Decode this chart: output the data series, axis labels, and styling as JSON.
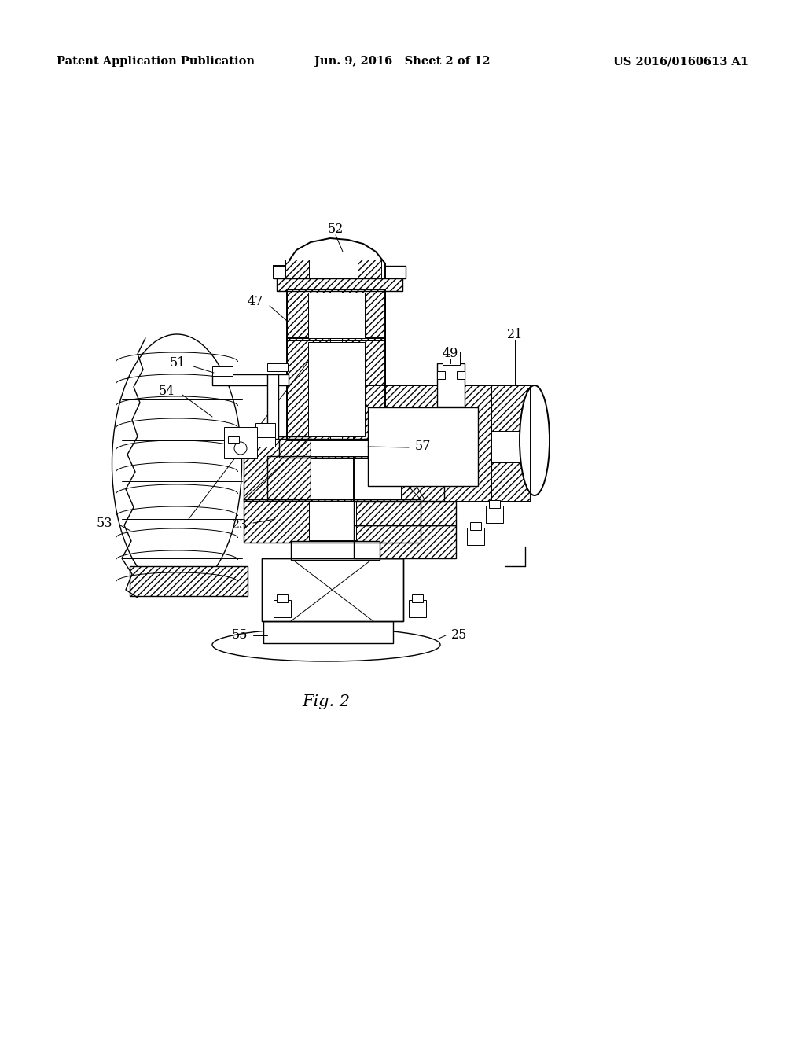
{
  "header_left": "Patent Application Publication",
  "header_center": "Jun. 9, 2016   Sheet 2 of 12",
  "header_right": "US 2016/0160613 A1",
  "figure_label": "Fig. 2",
  "bg": "#ffffff",
  "header_fontsize": 10.5,
  "fig_label_fontsize": 15,
  "lw_thin": 0.7,
  "lw_med": 1.0,
  "lw_thick": 1.4,
  "hatch": "////"
}
